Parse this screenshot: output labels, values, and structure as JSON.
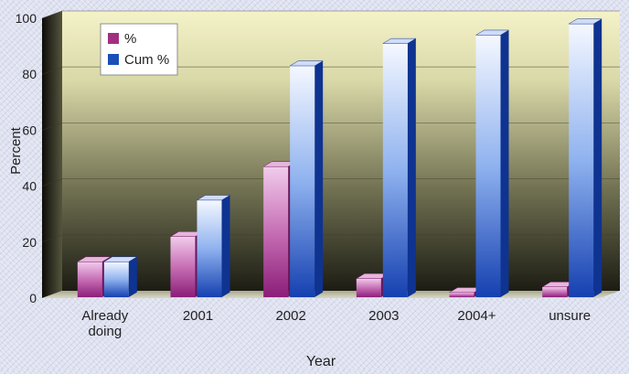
{
  "chart_data": {
    "type": "bar",
    "title": "",
    "xlabel": "Year",
    "ylabel": "Percent",
    "ylim": [
      0,
      100
    ],
    "yticks": [
      0,
      20,
      40,
      60,
      80,
      100
    ],
    "categories": [
      "Already doing",
      "2001",
      "2002",
      "2003",
      "2004+",
      "unsure"
    ],
    "series": [
      {
        "name": "%",
        "color": "#a0307f",
        "values": [
          13,
          22,
          47,
          7,
          2,
          4
        ]
      },
      {
        "name": "Cum %",
        "color": "#1a4fb8",
        "values": [
          13,
          35,
          83,
          91,
          94,
          98
        ]
      }
    ],
    "grid": true,
    "legend": "top-left"
  }
}
